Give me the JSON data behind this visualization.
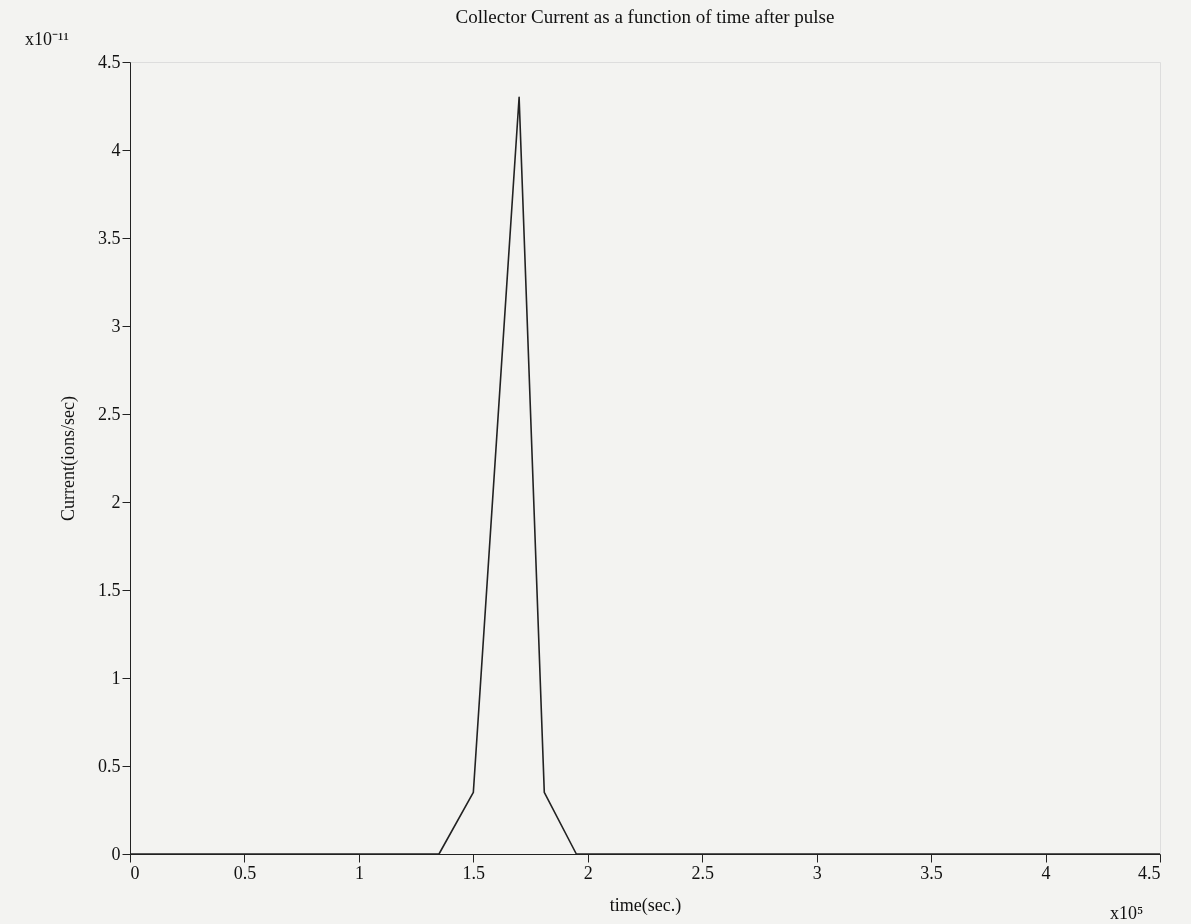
{
  "chart_data": {
    "type": "line",
    "title": "Collector Current as a function of time after pulse",
    "xlabel": "time(sec.)",
    "ylabel": "Current(ions/sec)",
    "annotations": [
      "x10⁻¹¹",
      "x10⁵"
    ],
    "x": [
      0,
      1.35,
      1.5,
      1.7,
      1.81,
      1.95,
      4.5
    ],
    "series": [
      {
        "color": "#222222",
        "values": [
          0,
          0,
          0.35,
          4.3,
          0.35,
          0,
          0
        ]
      }
    ],
    "xlim": [
      0,
      4.5
    ],
    "xticks": [
      0,
      0.5,
      1,
      1.5,
      2,
      2.5,
      3,
      3.5,
      4,
      4.5
    ],
    "ylim": [
      0,
      4.5
    ],
    "yticks": [
      0,
      0.5,
      1,
      1.5,
      2,
      2.5,
      3,
      3.5,
      4,
      4.5
    ],
    "grid": false,
    "marker": "none",
    "line_style": "solid"
  }
}
